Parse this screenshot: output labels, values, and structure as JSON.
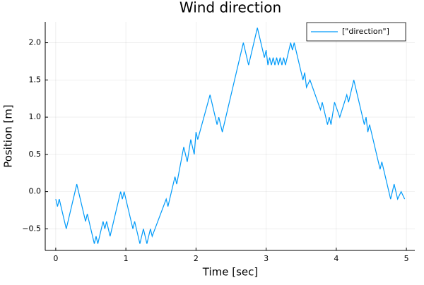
{
  "chart_data": {
    "type": "line",
    "title": "Wind direction",
    "x_label": "Time [sec]",
    "y_label": "Position [m]",
    "x": [
      0,
      0.025,
      0.05,
      0.15,
      0.3,
      0.425,
      0.45,
      0.55,
      0.575,
      0.6,
      0.675,
      0.7,
      0.725,
      0.775,
      0.925,
      0.95,
      0.975,
      1.1,
      1.125,
      1.2,
      1.25,
      1.3,
      1.35,
      1.375,
      1.575,
      1.6,
      1.7,
      1.725,
      1.825,
      1.875,
      1.925,
      1.975,
      2.0,
      2.025,
      2.2,
      2.3,
      2.325,
      2.375,
      2.675,
      2.75,
      2.875,
      2.975,
      3.0,
      3.025,
      3.05,
      3.075,
      3.1,
      3.125,
      3.15,
      3.175,
      3.2,
      3.225,
      3.25,
      3.275,
      3.35,
      3.375,
      3.4,
      3.5,
      3.525,
      3.55,
      3.575,
      3.625,
      3.7,
      3.775,
      3.8,
      3.875,
      3.9,
      3.925,
      3.975,
      4.05,
      4.15,
      4.175,
      4.25,
      4.4,
      4.425,
      4.45,
      4.475,
      4.625,
      4.65,
      4.775,
      4.825,
      4.875,
      4.925,
      4.975
    ],
    "series": [
      {
        "name": "[\"direction\"]",
        "color": "#009af9",
        "values": [
          -0.1,
          -0.2,
          -0.1,
          -0.5,
          0.1,
          -0.4,
          -0.3,
          -0.7,
          -0.6,
          -0.7,
          -0.4,
          -0.5,
          -0.4,
          -0.6,
          0,
          -0.1,
          0,
          -0.5,
          -0.4,
          -0.7,
          -0.5,
          -0.7,
          -0.5,
          -0.6,
          -0.1,
          -0.2,
          0.2,
          0.1,
          0.6,
          0.4,
          0.7,
          0.5,
          0.8,
          0.7,
          1.3,
          0.9,
          1.0,
          0.8,
          2.0,
          1.7,
          2.2,
          1.8,
          1.9,
          1.7,
          1.8,
          1.7,
          1.8,
          1.7,
          1.8,
          1.7,
          1.8,
          1.7,
          1.8,
          1.7,
          2.0,
          1.9,
          2.0,
          1.6,
          1.5,
          1.6,
          1.4,
          1.5,
          1.3,
          1.1,
          1.2,
          0.9,
          1.0,
          0.9,
          1.2,
          1.0,
          1.3,
          1.2,
          1.5,
          0.9,
          1.0,
          0.8,
          0.9,
          0.3,
          0.4,
          -0.1,
          0.1,
          -0.1,
          0,
          -0.1
        ]
      }
    ],
    "xlim": [
      -0.15,
      5.12
    ],
    "ylim": [
      -0.79,
      2.28
    ],
    "xticks": [
      0,
      1,
      2,
      3,
      4,
      5
    ],
    "yticks": [
      {
        "value": -0.5,
        "label": "−0.5"
      },
      {
        "value": 0,
        "label": "0.0"
      },
      {
        "value": 0.5,
        "label": "0.5"
      },
      {
        "value": 1,
        "label": "1.0"
      },
      {
        "value": 1.5,
        "label": "1.5"
      },
      {
        "value": 2,
        "label": "2.0"
      }
    ],
    "grid": true,
    "legend": "top-right"
  }
}
